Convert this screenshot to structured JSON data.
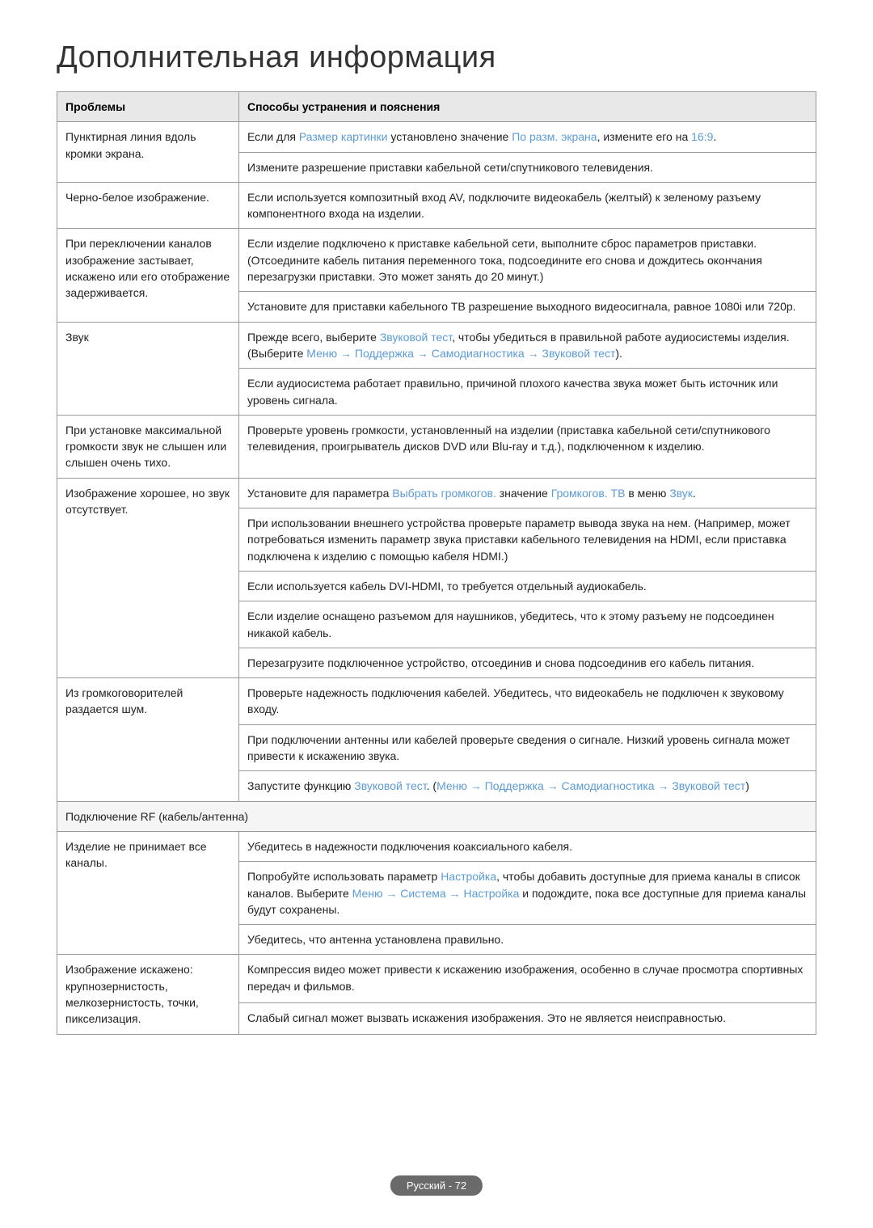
{
  "title": "Дополнительная информация",
  "columns": [
    "Проблемы",
    "Способы устранения и пояснения"
  ],
  "colors": {
    "highlight": "#5b9bd5",
    "header_bg": "#e8e8e8",
    "border": "#999999",
    "text": "#222222",
    "footer_bg": "#6a6a6a",
    "footer_text": "#ffffff"
  },
  "rows": [
    {
      "problem": "Пунктирная линия вдоль кромки экрана.",
      "solutions": [
        {
          "segments": [
            {
              "t": "Если для "
            },
            {
              "t": "Размер картинки",
              "hl": true
            },
            {
              "t": " установлено значение "
            },
            {
              "t": "По разм. экрана",
              "hl": true
            },
            {
              "t": ", измените его на "
            },
            {
              "t": "16:9",
              "hl": true
            },
            {
              "t": "."
            }
          ]
        },
        {
          "segments": [
            {
              "t": "Измените разрешение приставки кабельной сети/спутникового телевидения."
            }
          ]
        }
      ]
    },
    {
      "problem": "Черно-белое изображение.",
      "solutions": [
        {
          "segments": [
            {
              "t": "Если используется композитный вход AV, подключите видеокабель (желтый) к зеленому разъему компонентного входа на изделии."
            }
          ]
        }
      ]
    },
    {
      "problem": "При переключении каналов изображение застывает, искажено или его отображение задерживается.",
      "solutions": [
        {
          "segments": [
            {
              "t": "Если изделие подключено к приставке кабельной сети, выполните сброс параметров приставки. (Отсоедините кабель питания переменного тока, подсоедините его снова и дождитесь окончания перезагрузки приставки. Это может занять до 20 минут.)"
            }
          ]
        },
        {
          "segments": [
            {
              "t": "Установите для приставки кабельного ТВ разрешение выходного видеосигнала, равное 1080i или 720p."
            }
          ]
        }
      ]
    },
    {
      "problem": "Звук",
      "solutions": [
        {
          "segments": [
            {
              "t": "Прежде всего, выберите "
            },
            {
              "t": "Звуковой тест",
              "hl": true
            },
            {
              "t": ", чтобы убедиться в правильной работе аудиосистемы изделия. (Выберите "
            },
            {
              "t": "Меню",
              "hl": true
            },
            {
              "t": " → ",
              "arrow": true
            },
            {
              "t": "Поддержка",
              "hl": true
            },
            {
              "t": " → ",
              "arrow": true
            },
            {
              "t": "Самодиагностика",
              "hl": true
            },
            {
              "t": " → ",
              "arrow": true
            },
            {
              "t": "Звуковой тест",
              "hl": true
            },
            {
              "t": ")."
            }
          ]
        },
        {
          "segments": [
            {
              "t": "Если аудиосистема работает правильно, причиной плохого качества звука может быть источник или уровень сигнала."
            }
          ]
        }
      ]
    },
    {
      "problem": "При установке максимальной громкости звук не слышен или слышен очень тихо.",
      "solutions": [
        {
          "segments": [
            {
              "t": "Проверьте уровень громкости, установленный на изделии (приставка кабельной сети/спутникового телевидения, проигрыватель дисков DVD или Blu-ray и т.д.), подключенном к изделию."
            }
          ]
        }
      ]
    },
    {
      "problem": "Изображение хорошее, но звук отсутствует.",
      "solutions": [
        {
          "segments": [
            {
              "t": "Установите для параметра "
            },
            {
              "t": "Выбрать громкогов.",
              "hl": true
            },
            {
              "t": " значение "
            },
            {
              "t": "Громкогов. ТВ",
              "hl": true
            },
            {
              "t": " в меню "
            },
            {
              "t": "Звук",
              "hl": true
            },
            {
              "t": "."
            }
          ]
        },
        {
          "segments": [
            {
              "t": "При использовании внешнего устройства проверьте параметр вывода звука на нем. (Например, может потребоваться изменить параметр звука приставки кабельного телевидения на HDMI, если приставка подключена к изделию с помощью кабеля HDMI.)"
            }
          ]
        },
        {
          "segments": [
            {
              "t": "Если используется кабель DVI-HDMI, то требуется отдельный аудиокабель."
            }
          ]
        },
        {
          "segments": [
            {
              "t": "Если изделие оснащено разъемом для наушников, убедитесь, что к этому разъему не подсоединен никакой кабель."
            }
          ]
        },
        {
          "segments": [
            {
              "t": "Перезагрузите подключенное устройство, отсоединив и снова подсоединив его кабель питания."
            }
          ]
        }
      ]
    },
    {
      "problem": "Из громкоговорителей раздается шум.",
      "solutions": [
        {
          "segments": [
            {
              "t": "Проверьте надежность подключения кабелей. Убедитесь, что видеокабель не подключен к звуковому входу."
            }
          ]
        },
        {
          "segments": [
            {
              "t": "При подключении антенны или кабелей проверьте сведения о сигнале. Низкий уровень сигнала может привести к искажению звука."
            }
          ]
        },
        {
          "segments": [
            {
              "t": "Запустите функцию "
            },
            {
              "t": "Звуковой тест",
              "hl": true
            },
            {
              "t": ". ("
            },
            {
              "t": "Меню",
              "hl": true
            },
            {
              "t": " → ",
              "arrow": true
            },
            {
              "t": "Поддержка",
              "hl": true
            },
            {
              "t": " → ",
              "arrow": true
            },
            {
              "t": "Самодиагностика",
              "hl": true
            },
            {
              "t": " → ",
              "arrow": true
            },
            {
              "t": "Звуковой тест",
              "hl": true
            },
            {
              "t": ")"
            }
          ]
        }
      ]
    }
  ],
  "section_header": "Подключение RF (кабель/антенна)",
  "rows2": [
    {
      "problem": "Изделие не принимает все каналы.",
      "solutions": [
        {
          "segments": [
            {
              "t": "Убедитесь в надежности подключения коаксиального кабеля."
            }
          ]
        },
        {
          "segments": [
            {
              "t": "Попробуйте использовать параметр "
            },
            {
              "t": "Настройка",
              "hl": true
            },
            {
              "t": ", чтобы добавить доступные для приема каналы в список каналов. Выберите "
            },
            {
              "t": "Меню",
              "hl": true
            },
            {
              "t": " → ",
              "arrow": true
            },
            {
              "t": "Система",
              "hl": true
            },
            {
              "t": " → ",
              "arrow": true
            },
            {
              "t": "Настройка",
              "hl": true
            },
            {
              "t": " и подождите, пока все доступные для приема каналы будут сохранены."
            }
          ]
        },
        {
          "segments": [
            {
              "t": "Убедитесь, что антенна установлена правильно."
            }
          ]
        }
      ]
    },
    {
      "problem": "Изображение искажено: крупнозернистость, мелкозернистость, точки, пикселизация.",
      "solutions": [
        {
          "segments": [
            {
              "t": "Компрессия видео может привести к искажению изображения, особенно в случае просмотра спортивных передач и фильмов."
            }
          ]
        },
        {
          "segments": [
            {
              "t": "Слабый сигнал может вызвать искажения изображения. Это не является неисправностью."
            }
          ]
        }
      ]
    }
  ],
  "footer": "Русский - 72"
}
